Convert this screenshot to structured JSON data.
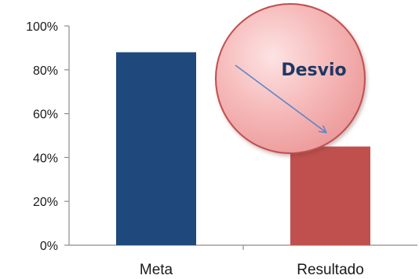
{
  "chart_data": {
    "type": "bar",
    "categories": [
      "Meta",
      "Resultado"
    ],
    "values": [
      88,
      45
    ],
    "ylim": [
      0,
      100
    ],
    "yticks": [
      0,
      20,
      40,
      60,
      80,
      100
    ],
    "ytick_format": "percent",
    "grid": false,
    "bar_colors": [
      "#1f497d",
      "#c0504d"
    ],
    "annotation": {
      "text": "Desvio",
      "shape": "circle",
      "fill": "#f4b6b6",
      "stroke": "#c0504d",
      "text_color": "#1f3864",
      "arrow": {
        "from": "Meta",
        "to": "Resultado",
        "color": "#5b86c9"
      }
    }
  }
}
